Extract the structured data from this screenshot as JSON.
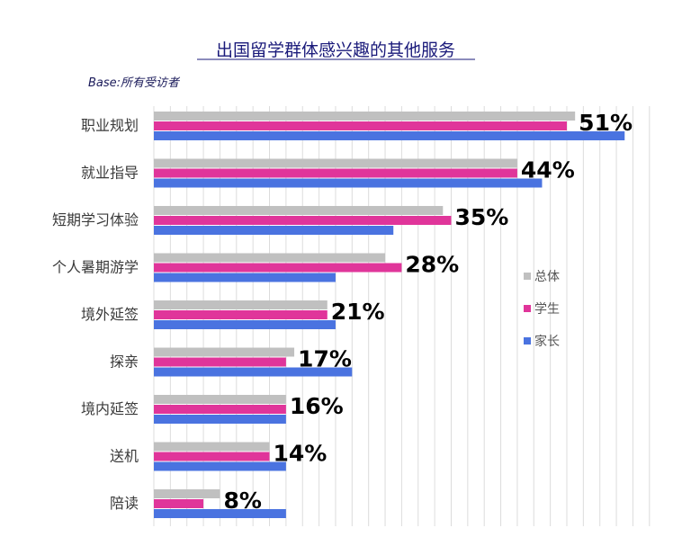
{
  "chart_data": {
    "type": "bar",
    "orientation": "horizontal",
    "title": "出国留学群体感兴趣的其他服务",
    "subtitle": "Base:所有受访者",
    "categories": [
      "职业规划",
      "就业指导",
      "短期学习体验",
      "个人暑期游学",
      "境外延签",
      "探亲",
      "境内延签",
      "送机",
      "陪读"
    ],
    "series": [
      {
        "name": "总体",
        "color": "#c0c0c0",
        "values": [
          51,
          44,
          35,
          28,
          21,
          17,
          16,
          14,
          8
        ]
      },
      {
        "name": "学生",
        "color": "#e0359a",
        "values": [
          50,
          44,
          36,
          30,
          21,
          16,
          16,
          14,
          6
        ]
      },
      {
        "name": "家长",
        "color": "#4a73e0",
        "values": [
          57,
          47,
          29,
          22,
          22,
          24,
          16,
          16,
          16
        ]
      }
    ],
    "data_labels": [
      "51%",
      "44%",
      "35%",
      "28%",
      "21%",
      "17%",
      "16%",
      "14%",
      "8%"
    ],
    "xlim": [
      0,
      60
    ],
    "grid": true,
    "legend_position": "right"
  }
}
